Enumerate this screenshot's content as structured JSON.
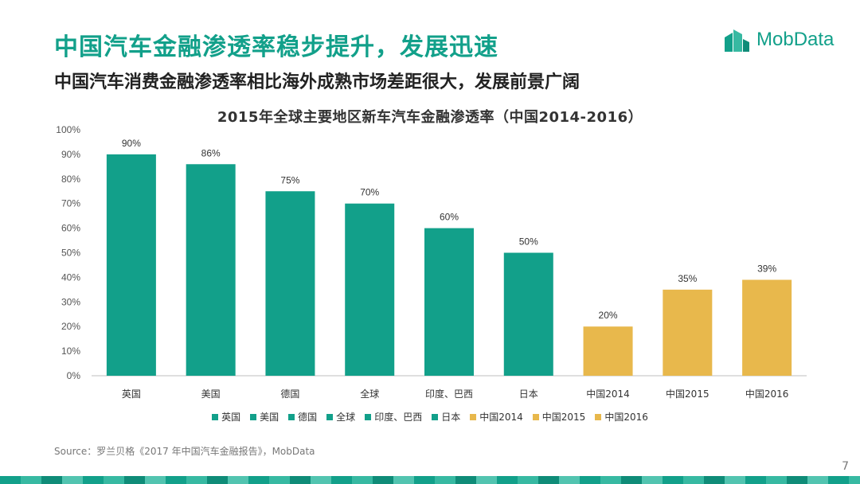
{
  "header": {
    "headline": "中国汽车金融渗透率稳步提升，发展迅速",
    "subheadline": "中国汽车消费金融渗透率相比海外成熟市场差距很大，发展前景广阔"
  },
  "logo": {
    "text": "MobData",
    "icon": "mobdata-logo-icon"
  },
  "chart_data": {
    "type": "bar",
    "title": "2015年全球主要地区新车汽车金融渗透率（中国2014-2016）",
    "categories": [
      "英国",
      "美国",
      "德国",
      "全球",
      "印度、巴西",
      "日本",
      "中国2014",
      "中国2015",
      "中国2016"
    ],
    "values": [
      90,
      86,
      75,
      70,
      60,
      50,
      20,
      35,
      39
    ],
    "data_labels": [
      "90%",
      "86%",
      "75%",
      "70%",
      "60%",
      "50%",
      "20%",
      "35%",
      "39%"
    ],
    "bar_colors": [
      "#12a08a",
      "#12a08a",
      "#12a08a",
      "#12a08a",
      "#12a08a",
      "#12a08a",
      "#e8b84c",
      "#e8b84c",
      "#e8b84c"
    ],
    "y_ticks": [
      "0%",
      "10%",
      "20%",
      "30%",
      "40%",
      "50%",
      "60%",
      "70%",
      "80%",
      "90%",
      "100%"
    ],
    "ylim": [
      0,
      100
    ],
    "xlabel": "",
    "ylabel": "",
    "grid": false,
    "legend_placement": "bottom",
    "legend": [
      "英国",
      "美国",
      "德国",
      "全球",
      "印度、巴西",
      "日本",
      "中国2014",
      "中国2015",
      "中国2016"
    ]
  },
  "colors": {
    "accent": "#12a08a",
    "highlight": "#e8b84c"
  },
  "footer": {
    "source": "Source：罗兰贝格《2017 年中国汽车金融报告》，MobData",
    "page_number": "7"
  }
}
